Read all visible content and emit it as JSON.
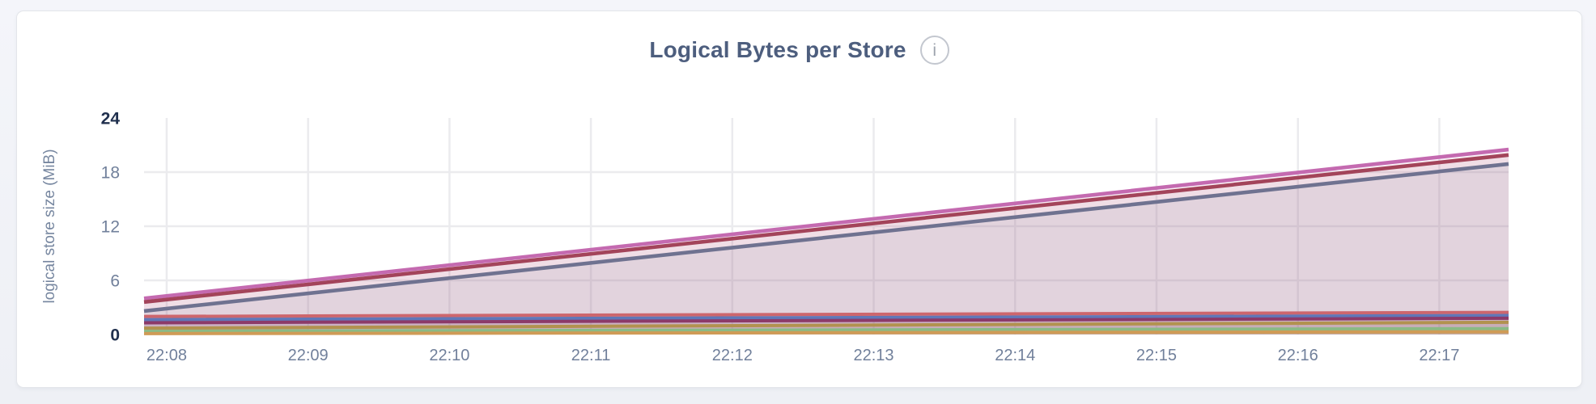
{
  "panel": {
    "title": "Logical Bytes per Store",
    "info_icon": "i"
  },
  "colors": {
    "panel_title": "#4d5e7e",
    "info_icon": "#9ca3ad",
    "axis_tick": "#71809b",
    "axis_tick_emphasized": "#20304e",
    "axis_title": "#7787a0",
    "gridline": "#ebebee",
    "card_background": "#ffffff",
    "page_background": "#f1f3f8"
  },
  "chart_data": {
    "type": "area",
    "title": "Logical Bytes per Store",
    "xlabel": "",
    "ylabel": "logical store size (MiB)",
    "ylim": [
      0,
      24
    ],
    "y_ticks": [
      0,
      6,
      12,
      18,
      24
    ],
    "y_tick_emphasized": [
      0,
      24
    ],
    "x_tick_labels": [
      "22:08",
      "22:09",
      "22:10",
      "22:11",
      "22:12",
      "22:13",
      "22:14",
      "22:15",
      "22:16",
      "22:17"
    ],
    "x_range_ticks": [
      -0.16,
      9.49
    ],
    "grid": true,
    "legend": "none",
    "fill_opacity": 0.1,
    "series": [
      {
        "name": "pink",
        "color": "#c46ab0",
        "start_mib": 4.0,
        "end_mib": 20.5,
        "values_at_ticks": [
          4.3,
          6.0,
          7.7,
          9.4,
          11.1,
          12.8,
          14.5,
          16.2,
          17.9,
          19.7
        ]
      },
      {
        "name": "dark-red",
        "color": "#a3445a",
        "start_mib": 3.6,
        "end_mib": 19.9,
        "values_at_ticks": [
          3.9,
          5.6,
          7.3,
          8.9,
          10.6,
          12.3,
          14.0,
          15.7,
          17.4,
          19.1
        ]
      },
      {
        "name": "slate",
        "color": "#6f7290",
        "start_mib": 2.6,
        "end_mib": 18.9,
        "values_at_ticks": [
          2.9,
          4.6,
          6.3,
          7.9,
          9.6,
          11.3,
          13.0,
          14.7,
          16.4,
          18.1
        ]
      },
      {
        "name": "salmon-red",
        "color": "#cd666d",
        "start_mib": 2.0,
        "end_mib": 2.45,
        "values_at_ticks": [
          2.0,
          2.1,
          2.1,
          2.1,
          2.2,
          2.2,
          2.3,
          2.3,
          2.4,
          2.4
        ]
      },
      {
        "name": "royal-blue",
        "color": "#6077b8",
        "start_mib": 1.65,
        "end_mib": 2.1,
        "values_at_ticks": [
          1.7,
          1.7,
          1.8,
          1.8,
          1.8,
          1.9,
          1.9,
          2.0,
          2.0,
          2.1
        ]
      },
      {
        "name": "dark-magenta",
        "color": "#8c3a69",
        "start_mib": 1.3,
        "end_mib": 1.8,
        "values_at_ticks": [
          1.3,
          1.4,
          1.4,
          1.5,
          1.5,
          1.6,
          1.6,
          1.7,
          1.7,
          1.8
        ]
      },
      {
        "name": "tan-gold",
        "color": "#b2924f",
        "start_mib": 0.7,
        "end_mib": 1.35,
        "values_at_ticks": [
          0.7,
          0.8,
          0.8,
          0.9,
          1.0,
          1.0,
          1.1,
          1.2,
          1.2,
          1.3
        ]
      },
      {
        "name": "green",
        "color": "#8aba85",
        "start_mib": 0.35,
        "end_mib": 0.65,
        "values_at_ticks": [
          0.4,
          0.4,
          0.4,
          0.5,
          0.5,
          0.5,
          0.5,
          0.6,
          0.6,
          0.6
        ]
      },
      {
        "name": "orange",
        "color": "#cf9b56",
        "start_mib": 0.1,
        "end_mib": 0.3,
        "values_at_ticks": [
          0.1,
          0.1,
          0.1,
          0.2,
          0.2,
          0.2,
          0.2,
          0.2,
          0.3,
          0.3
        ]
      }
    ]
  }
}
